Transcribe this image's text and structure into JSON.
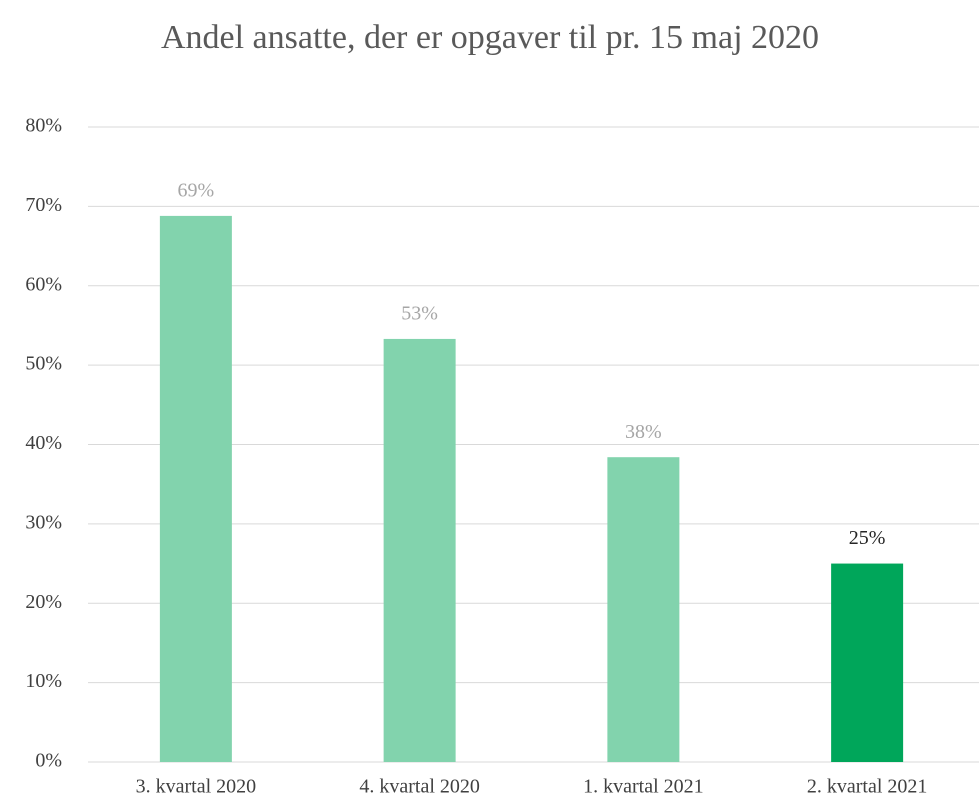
{
  "chart_data": {
    "type": "bar",
    "title": "Andel ansatte, der er opgaver til pr. 15 maj 2020",
    "categories": [
      "3. kvartal 2020",
      "4. kvartal 2020",
      "1. kvartal 2021",
      "2. kvartal 2021"
    ],
    "values": [
      68.8,
      53.3,
      38.4,
      25
    ],
    "value_labels": [
      "69%",
      "53%",
      "38%",
      "25%"
    ],
    "colors": [
      "#82d3ad",
      "#82d3ad",
      "#82d3ad",
      "#00a65a"
    ],
    "value_label_colors": [
      "#a6a6a6",
      "#a6a6a6",
      "#a6a6a6",
      "#262626"
    ],
    "ylim": [
      0,
      80
    ],
    "yticks": [
      {
        "value": 0,
        "label": "0%"
      },
      {
        "value": 10,
        "label": "10%"
      },
      {
        "value": 20,
        "label": "20%"
      },
      {
        "value": 30,
        "label": "30%"
      },
      {
        "value": 40,
        "label": "40%"
      },
      {
        "value": 50,
        "label": "50%"
      },
      {
        "value": 60,
        "label": "60%"
      },
      {
        "value": 70,
        "label": "70%"
      },
      {
        "value": 80,
        "label": "80%"
      }
    ],
    "grid": true
  }
}
